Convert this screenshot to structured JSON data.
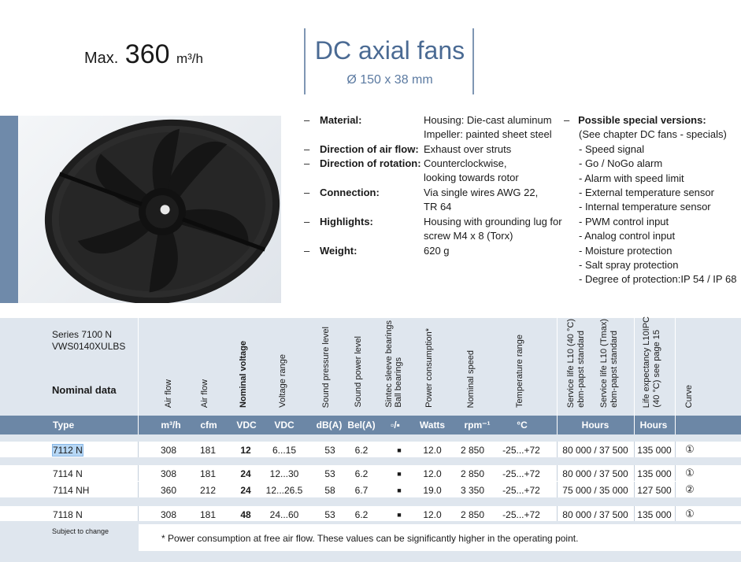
{
  "header": {
    "max_prefix": "Max.",
    "max_value": "360",
    "max_unit": "m³/h",
    "title": "DC axial fans",
    "dimensions": "Ø 150 x 38 mm"
  },
  "photo": {
    "subject": "fan-photo"
  },
  "specs": [
    {
      "dash": "–",
      "label": "Material:",
      "lines": [
        "Housing: Die-cast aluminum",
        "Impeller: painted sheet steel"
      ]
    },
    {
      "dash": "–",
      "label": "Direction of air flow:",
      "lines": [
        "Exhaust over struts"
      ]
    },
    {
      "dash": "–",
      "label": "Direction of rotation:",
      "lines": [
        "Counterclockwise,",
        "looking towards rotor"
      ]
    },
    {
      "dash": "–",
      "label": "Connection:",
      "lines": [
        "Via single wires AWG 22,",
        "TR 64"
      ]
    },
    {
      "dash": "–",
      "label": "Highlights:",
      "lines": [
        "Housing with grounding lug for",
        "screw M4 x 8 (Torx)"
      ]
    },
    {
      "dash": "–",
      "label": "Weight:",
      "lines": [
        "620 g"
      ]
    }
  ],
  "special": {
    "dash": "–",
    "title": "Possible special versions:",
    "subtitle": "(See chapter DC fans - specials)",
    "items": [
      "- Speed signal",
      "- Go / NoGo alarm",
      "- Alarm with speed limit",
      "- External temperature sensor",
      "- Internal temperature sensor",
      "- PWM control input",
      "- Analog control input",
      "- Moisture protection",
      "- Salt spray protection",
      "- Degree of protection:IP 54 / IP 68"
    ]
  },
  "table": {
    "series_line1": "Series 7100 N",
    "series_line2": "VWS0140XULBS",
    "nominal_label": "Nominal data",
    "col_headers": {
      "air_flow_1": "Air flow",
      "air_flow_2": "Air flow",
      "nominal_voltage": "Nominal voltage",
      "voltage_range": "Voltage range",
      "sound_pressure": "Sound pressure level",
      "sound_power": "Sound power level",
      "bearings_1": "Sintec sleeve bearings",
      "bearings_2": "Ball bearings",
      "power": "Power consumption*",
      "speed": "Nominal speed",
      "temp": "Temperature range",
      "life1_1": "Service life L10 (40 °C)",
      "life1_2": "ebm-papst standard",
      "life2_1": "Service life L10 (Tmax)",
      "life2_2": "ebm-papst standard",
      "life3_1": "Life expectancy L10IPC",
      "life3_2": "(40 °C)  see page 15",
      "curve": "Curve"
    },
    "units": {
      "type": "Type",
      "m3h": "m³/h",
      "cfm": "cfm",
      "vdc1": "VDC",
      "vdc2": "VDC",
      "dba": "dB(A)",
      "bela": "Bel(A)",
      "bearing": "▫/▪",
      "watts": "Watts",
      "rpm": "rpm⁻¹",
      "degc": "°C",
      "hours1": "Hours",
      "hours2": "Hours"
    },
    "rows": [
      {
        "type": "7112 N",
        "m3h": "308",
        "cfm": "181",
        "vdc": "12",
        "vrange": "6...15",
        "dba": "53",
        "bela": "6.2",
        "bearing": "■",
        "watts": "12.0",
        "rpm": "2 850",
        "temp": "-25...+72",
        "life": "80 000 / 37 500",
        "life3": "135 000",
        "curve": "①"
      },
      {
        "type": "7114 N",
        "m3h": "308",
        "cfm": "181",
        "vdc": "24",
        "vrange": "12...30",
        "dba": "53",
        "bela": "6.2",
        "bearing": "■",
        "watts": "12.0",
        "rpm": "2 850",
        "temp": "-25...+72",
        "life": "80 000 / 37 500",
        "life3": "135 000",
        "curve": "①"
      },
      {
        "type": "7114 NH",
        "m3h": "360",
        "cfm": "212",
        "vdc": "24",
        "vrange": "12...26.5",
        "dba": "58",
        "bela": "6.7",
        "bearing": "■",
        "watts": "19.0",
        "rpm": "3 350",
        "temp": "-25...+72",
        "life": "75 000 / 35 000",
        "life3": "127 500",
        "curve": "②"
      },
      {
        "type": "7118 N",
        "m3h": "308",
        "cfm": "181",
        "vdc": "48",
        "vrange": "24...60",
        "dba": "53",
        "bela": "6.2",
        "bearing": "■",
        "watts": "12.0",
        "rpm": "2 850",
        "temp": "-25...+72",
        "life": "80 000 / 37 500",
        "life3": "135 000",
        "curve": "①"
      }
    ],
    "subject_to_change": "Subject to change",
    "footnote": "* Power consumption at free air flow. These values can be significantly higher in the operating point."
  },
  "colors": {
    "accent": "#4a6a93",
    "header_band": "#6c87a6",
    "table_bg": "#dfe6ee"
  }
}
